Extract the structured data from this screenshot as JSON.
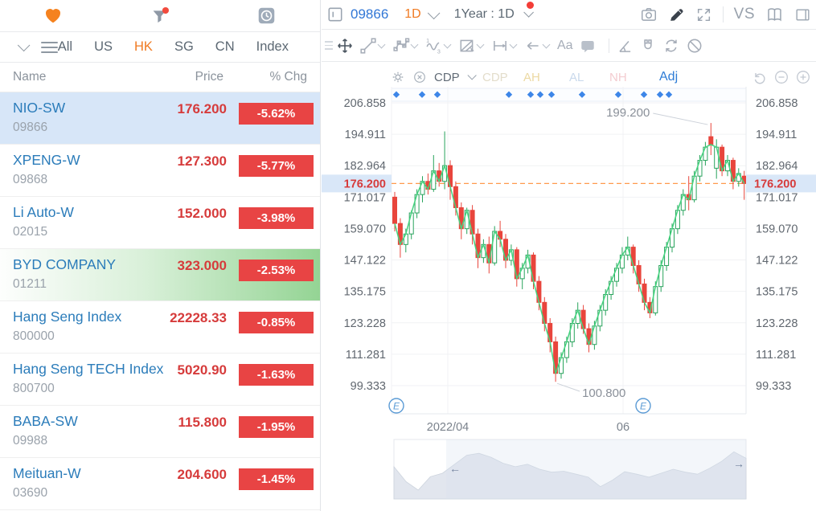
{
  "watchlist": {
    "toolbar_icons": [
      "favorites-heart-icon",
      "filter-funnel-icon",
      "recent-clock-icon"
    ],
    "tabs": [
      {
        "label": "All",
        "active": false
      },
      {
        "label": "US",
        "active": false
      },
      {
        "label": "HK",
        "active": true
      },
      {
        "label": "SG",
        "active": false
      },
      {
        "label": "CN",
        "active": false
      },
      {
        "label": "Index",
        "active": false
      }
    ],
    "columns": [
      "Name",
      "Price",
      "% Chg"
    ],
    "rows": [
      {
        "name": "NIO-SW",
        "code": "09866",
        "price": "176.200",
        "chg": "-5.62%",
        "state": "selected"
      },
      {
        "name": "XPENG-W",
        "code": "09868",
        "price": "127.300",
        "chg": "-5.77%",
        "state": ""
      },
      {
        "name": "Li Auto-W",
        "code": "02015",
        "price": "152.000",
        "chg": "-3.98%",
        "state": ""
      },
      {
        "name": "BYD COMPANY",
        "code": "01211",
        "price": "323.000",
        "chg": "-2.53%",
        "state": "flash-green"
      },
      {
        "name": "Hang Seng Index",
        "code": "800000",
        "price": "22228.33",
        "chg": "-0.85%",
        "state": ""
      },
      {
        "name": "Hang Seng TECH Index",
        "code": "800700",
        "price": "5020.90",
        "chg": "-1.63%",
        "state": ""
      },
      {
        "name": "BABA-SW",
        "code": "09988",
        "price": "115.800",
        "chg": "-1.95%",
        "state": ""
      },
      {
        "name": "Meituan-W",
        "code": "03690",
        "price": "204.600",
        "chg": "-1.45%",
        "state": ""
      }
    ]
  },
  "chart_header": {
    "symbol": "09866",
    "period": "1D",
    "range": "1Year : 1D",
    "vs_label": "VS",
    "left_icons": [
      "chart-layout-icon"
    ],
    "right_icons": [
      "camera-icon",
      "draw-pencil-icon",
      "expand-icon",
      "vs-compare",
      "book-icon",
      "panel-right-icon"
    ]
  },
  "drawing_toolbar": {
    "tools": [
      {
        "name": "move-tool",
        "active": true,
        "chevron": false
      },
      {
        "name": "trendline-tool",
        "chevron": true
      },
      {
        "name": "shape-tool",
        "chevron": true
      },
      {
        "name": "wave-tool",
        "chevron": true
      },
      {
        "name": "pattern-tool",
        "chevron": true
      },
      {
        "name": "measure-tool",
        "chevron": true
      },
      {
        "name": "arrow-tool",
        "chevron": true
      },
      {
        "name": "text-tool",
        "chevron": false,
        "glyph": "Aa"
      },
      {
        "name": "comment-tool",
        "chevron": false
      },
      {
        "name": "divider"
      },
      {
        "name": "angle-tool",
        "chevron": false
      },
      {
        "name": "magnet-tool",
        "chevron": false
      },
      {
        "name": "replay-tool",
        "chevron": false
      },
      {
        "name": "hide-drawings-tool",
        "chevron": false
      }
    ]
  },
  "indicator_bar": {
    "selected": "CDP",
    "faded": [
      {
        "label": "CDP",
        "color": "#e3ddcb"
      },
      {
        "label": "AH",
        "color": "#ecd9a3"
      },
      {
        "label": "AL",
        "color": "#c9d9ec"
      },
      {
        "label": "NH",
        "color": "#f3ccd0"
      }
    ],
    "adj_label": "Adj",
    "right_icons": [
      "undo-icon",
      "zoom-out-icon",
      "zoom-in-icon"
    ]
  },
  "chart_data": {
    "type": "candlestick",
    "symbol": "09866",
    "y_ticks": [
      "206.858",
      "194.911",
      "182.964",
      "176.200",
      "171.017",
      "159.070",
      "147.122",
      "135.175",
      "123.228",
      "111.281",
      "99.333"
    ],
    "current_price": "176.200",
    "high_annotation": "199.200",
    "low_annotation": "100.800",
    "x_labels": [
      "2022/04",
      "06"
    ],
    "x_label_pos": [
      157,
      375
    ],
    "event_markers_x": [
      93,
      125,
      144,
      233,
      260,
      272,
      286,
      324,
      369,
      401,
      421,
      432
    ],
    "earnings_markers_x": [
      93,
      400
    ],
    "earnings_glyph": "E",
    "candles": [
      [
        171,
        173,
        158,
        161
      ],
      [
        161,
        163,
        148,
        153
      ],
      [
        153,
        159,
        150,
        157
      ],
      [
        157,
        166,
        155,
        165
      ],
      [
        165,
        174,
        163,
        172
      ],
      [
        172,
        179,
        169,
        177
      ],
      [
        177,
        180,
        172,
        174
      ],
      [
        174,
        187,
        173,
        181
      ],
      [
        181,
        184,
        175,
        177
      ],
      [
        177,
        196,
        174,
        183
      ],
      [
        183,
        185,
        170,
        175
      ],
      [
        175,
        177,
        164,
        167
      ],
      [
        167,
        169,
        155,
        159
      ],
      [
        159,
        167,
        157,
        166
      ],
      [
        166,
        168,
        153,
        157
      ],
      [
        157,
        159,
        144,
        148
      ],
      [
        148,
        155,
        146,
        153
      ],
      [
        153,
        156,
        142,
        146
      ],
      [
        146,
        160,
        145,
        158
      ],
      [
        158,
        162,
        152,
        155
      ],
      [
        155,
        157,
        144,
        147
      ],
      [
        147,
        153,
        145,
        151
      ],
      [
        151,
        152,
        137,
        140
      ],
      [
        140,
        146,
        136,
        144
      ],
      [
        144,
        151,
        142,
        149
      ],
      [
        149,
        150,
        136,
        139
      ],
      [
        139,
        141,
        128,
        131
      ],
      [
        131,
        133,
        120,
        123
      ],
      [
        123,
        125,
        112,
        116
      ],
      [
        116,
        118,
        100.8,
        104
      ],
      [
        104,
        112,
        102,
        110
      ],
      [
        110,
        118,
        108,
        116
      ],
      [
        116,
        125,
        114,
        123
      ],
      [
        123,
        131,
        121,
        128
      ],
      [
        128,
        130,
        119,
        121
      ],
      [
        121,
        123,
        112,
        115
      ],
      [
        115,
        124,
        113,
        122
      ],
      [
        122,
        130,
        120,
        128
      ],
      [
        128,
        136,
        126,
        134
      ],
      [
        134,
        141,
        132,
        139
      ],
      [
        139,
        146,
        137,
        144
      ],
      [
        144,
        152,
        142,
        149
      ],
      [
        149,
        156,
        147,
        152
      ],
      [
        152,
        153,
        142,
        145
      ],
      [
        145,
        147,
        135,
        138
      ],
      [
        138,
        140,
        128,
        131
      ],
      [
        131,
        133,
        125,
        127
      ],
      [
        127,
        139,
        126,
        137
      ],
      [
        137,
        147,
        135,
        145
      ],
      [
        145,
        154,
        143,
        152
      ],
      [
        152,
        161,
        150,
        159
      ],
      [
        159,
        168,
        157,
        166
      ],
      [
        166,
        174,
        164,
        172
      ],
      [
        172,
        179,
        166,
        170
      ],
      [
        170,
        181,
        169,
        179
      ],
      [
        179,
        187,
        177,
        185
      ],
      [
        185,
        192,
        183,
        190
      ],
      [
        194,
        199.2,
        187,
        191
      ],
      [
        182,
        193,
        178,
        190
      ],
      [
        190,
        191,
        179,
        181
      ],
      [
        181,
        187,
        179,
        185
      ],
      [
        185,
        186,
        174,
        177
      ],
      [
        177,
        182,
        175,
        180
      ],
      [
        179,
        181,
        170,
        176.2
      ]
    ],
    "navigator": {
      "points": [
        0.55,
        0.25,
        0.08,
        0.35,
        0.42,
        0.6,
        0.78,
        0.82,
        0.74,
        0.62,
        0.55,
        0.6,
        0.5,
        0.44,
        0.46,
        0.4,
        0.34,
        0.15,
        0.28,
        0.45,
        0.4,
        0.34,
        0.42,
        0.5,
        0.44,
        0.4,
        0.52,
        0.66,
        0.85,
        0.72
      ],
      "left_arrow": "←",
      "right_arrow": "→",
      "unselected_width": 65
    }
  },
  "colors": {
    "name_blue": "#2b7cba",
    "price_red": "#d63b3b",
    "badge_red": "#e84444",
    "tab_orange": "#f07a22",
    "candle_up": "#28a35c",
    "candle_down": "#e8453c",
    "line_green": "#45d37f",
    "dashed_orange": "#ff9a4d",
    "diamond_blue": "#3e86e8",
    "axis_text": "#60676f",
    "annotation_gray": "#8a9099",
    "chip_bg": "#d9e7f8",
    "grid": "#f1f2f4",
    "nav_fill": "#e2e6ee",
    "earnings_blue": "#5b9bd5"
  }
}
